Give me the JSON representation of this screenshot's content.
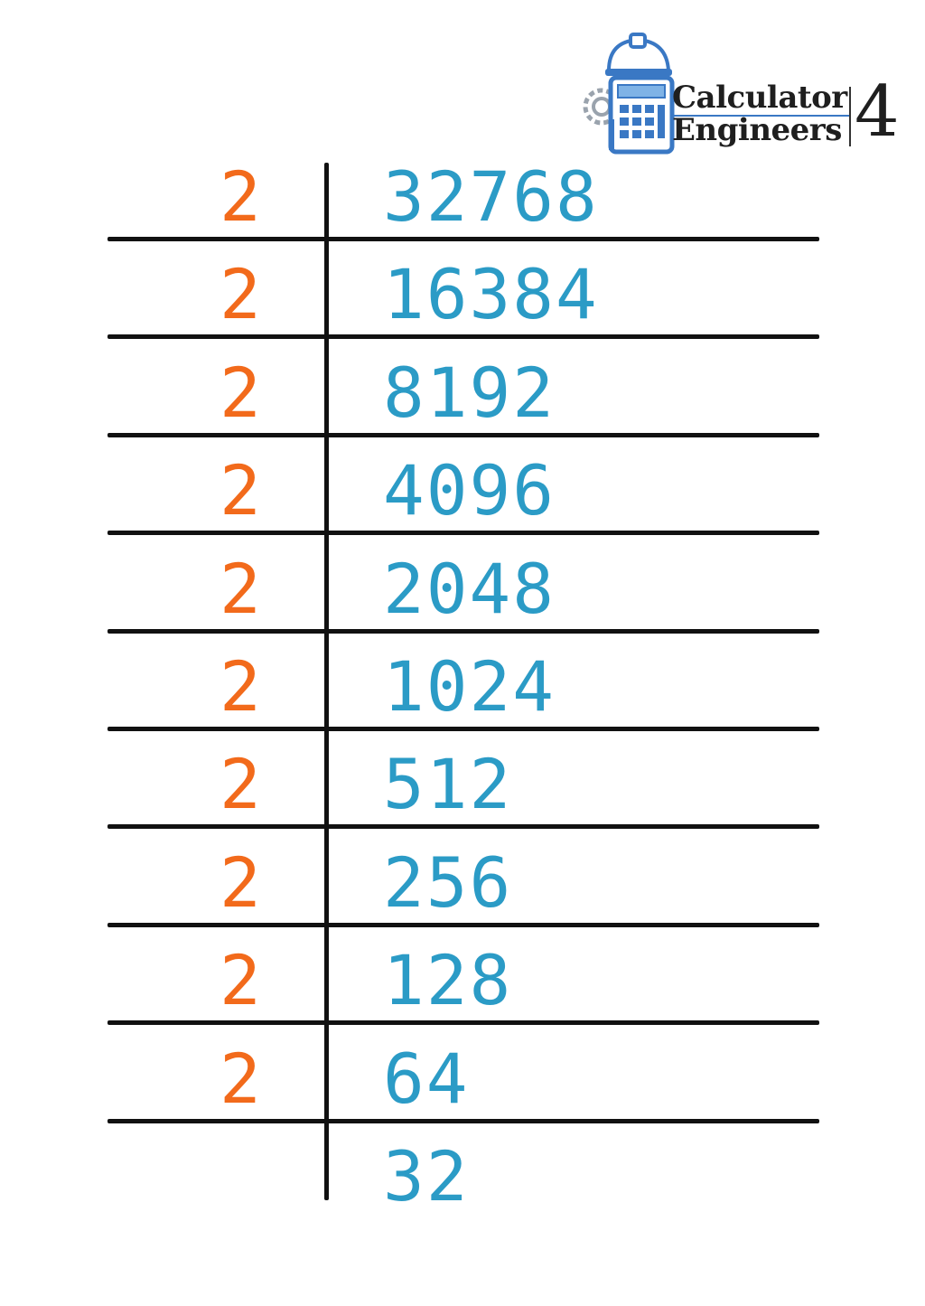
{
  "logo": {
    "line1": "Calculator",
    "line2": "Engineers",
    "suffix": "4"
  },
  "colors": {
    "divisor": "#f26a1b",
    "quotient": "#2b9bc6",
    "lines": "#111111"
  },
  "rows": [
    {
      "divisor": "2",
      "value": "32768"
    },
    {
      "divisor": "2",
      "value": "16384"
    },
    {
      "divisor": "2",
      "value": "8192"
    },
    {
      "divisor": "2",
      "value": "4096"
    },
    {
      "divisor": "2",
      "value": "2048"
    },
    {
      "divisor": "2",
      "value": "1024"
    },
    {
      "divisor": "2",
      "value": "512"
    },
    {
      "divisor": "2",
      "value": "256"
    },
    {
      "divisor": "2",
      "value": "128"
    },
    {
      "divisor": "2",
      "value": "64"
    },
    {
      "divisor": "",
      "value": "32"
    }
  ]
}
